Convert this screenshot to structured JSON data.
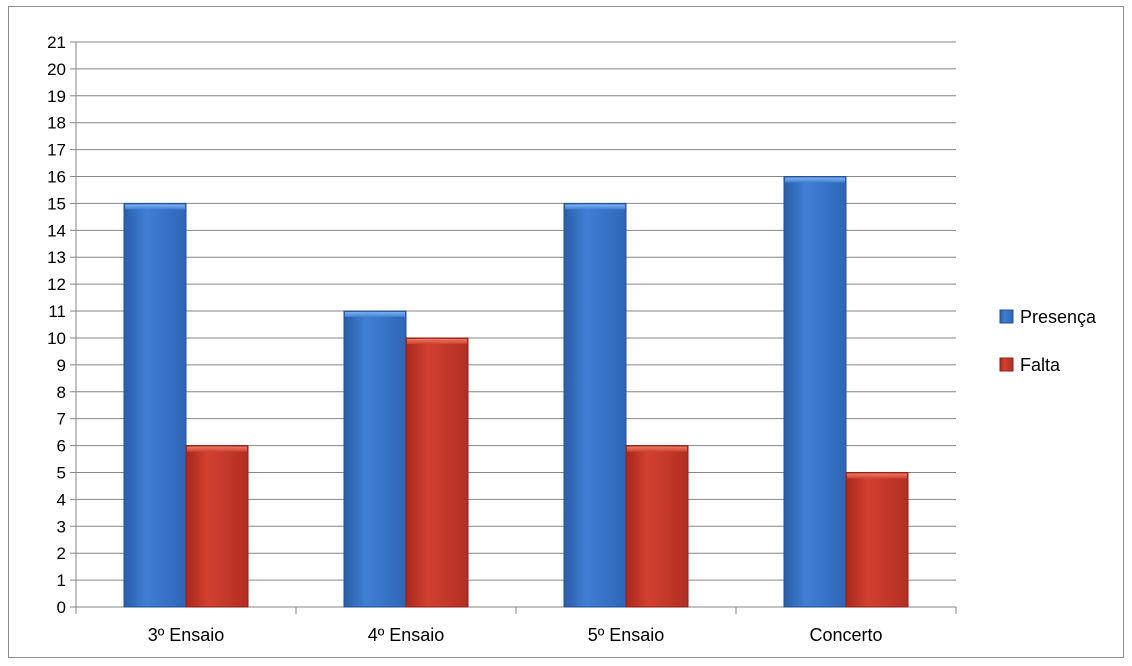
{
  "chart_data": {
    "type": "bar",
    "categories": [
      "3º Ensaio",
      "4º Ensaio",
      "5º Ensaio",
      "Concerto"
    ],
    "series": [
      {
        "name": "Presença",
        "values": [
          15,
          11,
          15,
          16
        ],
        "color": "#3a72c4"
      },
      {
        "name": "Falta",
        "values": [
          6,
          10,
          6,
          5
        ],
        "color": "#c0392b"
      }
    ],
    "title": "",
    "xlabel": "",
    "ylabel": "",
    "ylim": [
      0,
      21
    ],
    "ytick_step": 1,
    "grid": true,
    "legend_position": "right"
  }
}
